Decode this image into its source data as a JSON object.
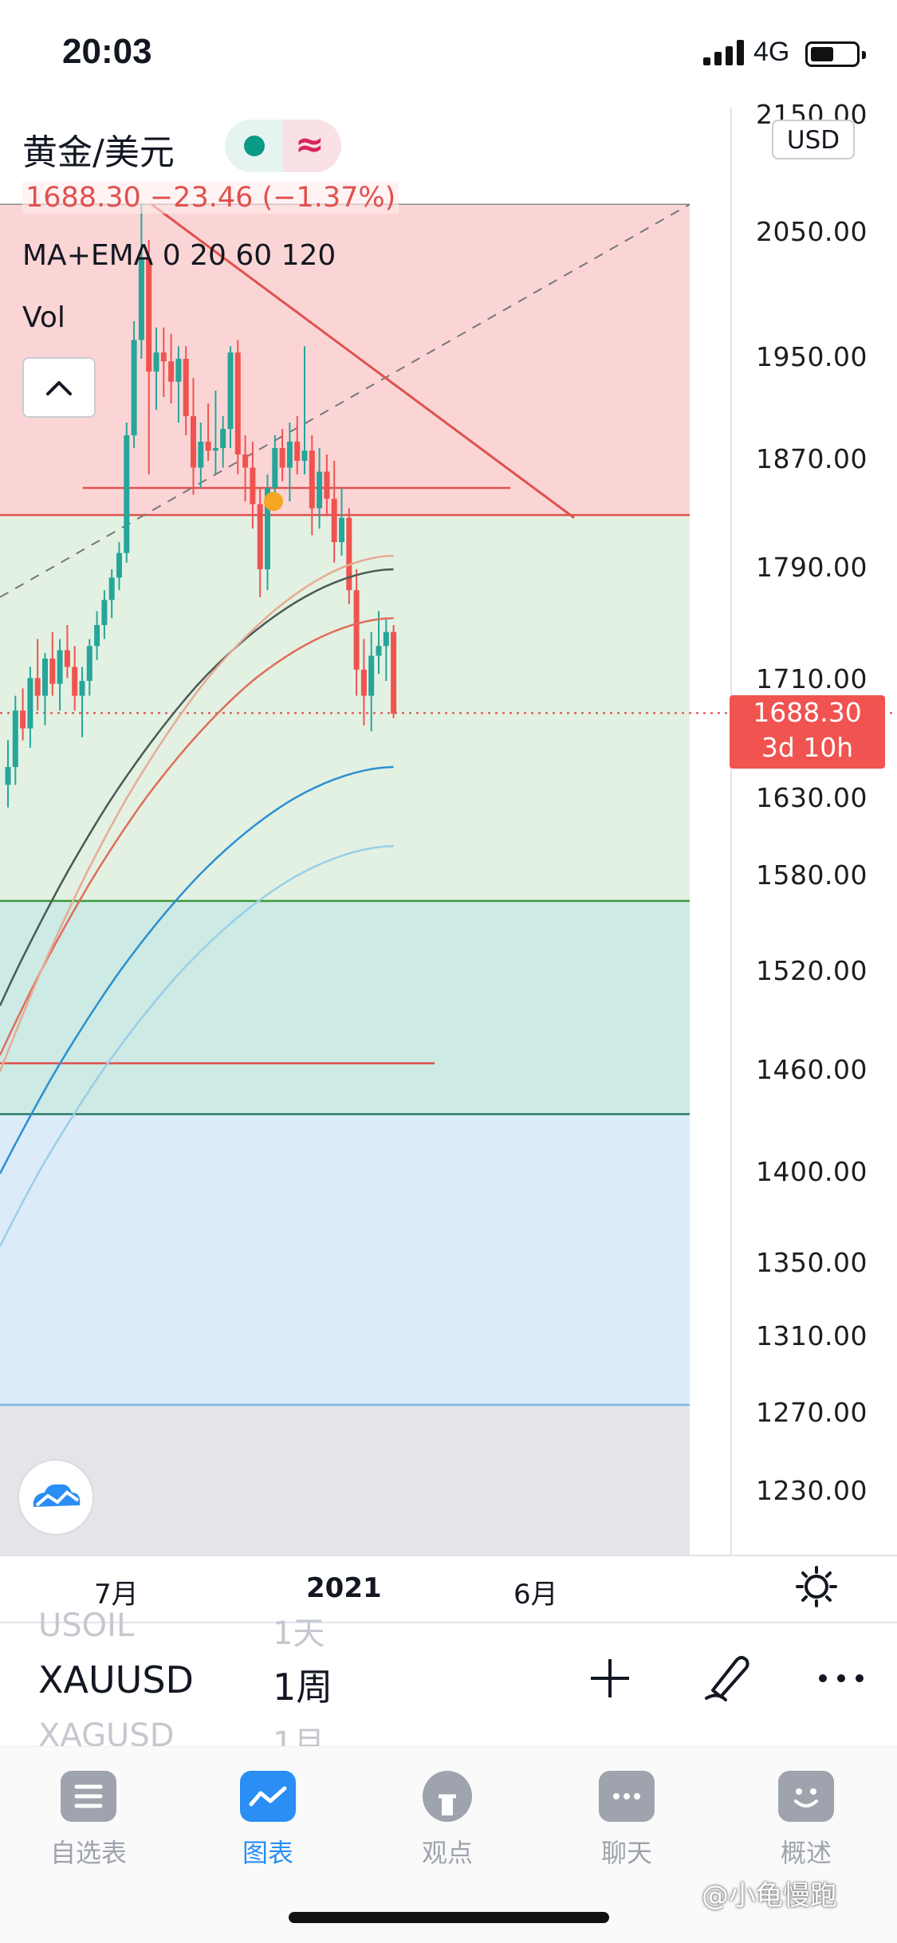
{
  "status_bar": {
    "time": "20:03",
    "network": "4G"
  },
  "symbol": {
    "title": "黄金/美元",
    "quote": "1688.30 −23.46 (−1.37%)",
    "indicator": "MA+EMA 0 20 60 120",
    "volume_label": "Vol",
    "currency": "USD"
  },
  "price_axis": {
    "labels": [
      "2150.00",
      "2050.00",
      "1950.00",
      "1870.00",
      "1790.00",
      "1710.00",
      "1630.00",
      "1580.00",
      "1520.00",
      "1460.00",
      "1400.00",
      "1350.00",
      "1310.00",
      "1270.00",
      "1230.00"
    ]
  },
  "price_tag": {
    "price": "1688.30",
    "countdown": "3d 10h"
  },
  "time_axis": {
    "labels": [
      "7月",
      "2021",
      "6月"
    ]
  },
  "picker": {
    "symbol_above": "USOIL",
    "interval_above": "1天",
    "symbol": "XAUUSD",
    "interval": "1周",
    "symbol_below": "XAGUSD",
    "interval_below": "1月"
  },
  "tabs": [
    {
      "label": "自选表",
      "icon": "watchlist-icon"
    },
    {
      "label": "图表",
      "icon": "chart-icon"
    },
    {
      "label": "观点",
      "icon": "ideas-icon"
    },
    {
      "label": "聊天",
      "icon": "chat-icon"
    },
    {
      "label": "概述",
      "icon": "overview-icon"
    }
  ],
  "watermark": "@小龟慢跑",
  "colors": {
    "up": "#26a69a",
    "down": "#ef5350",
    "accent": "#2a8ef4",
    "price_tag": "#f05350"
  },
  "chart_data": {
    "type": "candlestick",
    "symbol": "XAUUSD",
    "interval": "1周",
    "last_price": 1688.3,
    "change": -23.46,
    "change_pct": -1.37,
    "ylim": [
      1200,
      2160
    ],
    "y_ticks": [
      2150,
      2050,
      1950,
      1870,
      1790,
      1710,
      1630,
      1580,
      1520,
      1460,
      1400,
      1350,
      1310,
      1270,
      1230
    ],
    "zones": [
      {
        "from": 1830,
        "to": 2075,
        "color": "#fbd5d5"
      },
      {
        "from": 1565,
        "to": 1830,
        "color": "#e3f1e3"
      },
      {
        "from": 1435,
        "to": 1565,
        "color": "#cdeae4"
      },
      {
        "from": 1275,
        "to": 1435,
        "color": "#dcebf8"
      }
    ],
    "candles": [
      {
        "o": 1640,
        "h": 1670,
        "l": 1625,
        "c": 1652
      },
      {
        "o": 1652,
        "h": 1700,
        "l": 1640,
        "c": 1690
      },
      {
        "o": 1690,
        "h": 1705,
        "l": 1670,
        "c": 1678
      },
      {
        "o": 1678,
        "h": 1720,
        "l": 1665,
        "c": 1712
      },
      {
        "o": 1712,
        "h": 1740,
        "l": 1690,
        "c": 1700
      },
      {
        "o": 1700,
        "h": 1730,
        "l": 1680,
        "c": 1726
      },
      {
        "o": 1726,
        "h": 1745,
        "l": 1700,
        "c": 1708
      },
      {
        "o": 1708,
        "h": 1740,
        "l": 1690,
        "c": 1732
      },
      {
        "o": 1732,
        "h": 1750,
        "l": 1712,
        "c": 1720
      },
      {
        "o": 1720,
        "h": 1735,
        "l": 1690,
        "c": 1700
      },
      {
        "o": 1700,
        "h": 1720,
        "l": 1672,
        "c": 1710
      },
      {
        "o": 1710,
        "h": 1740,
        "l": 1700,
        "c": 1735
      },
      {
        "o": 1735,
        "h": 1760,
        "l": 1725,
        "c": 1750
      },
      {
        "o": 1750,
        "h": 1775,
        "l": 1740,
        "c": 1768
      },
      {
        "o": 1768,
        "h": 1790,
        "l": 1755,
        "c": 1784
      },
      {
        "o": 1784,
        "h": 1810,
        "l": 1775,
        "c": 1802
      },
      {
        "o": 1802,
        "h": 1900,
        "l": 1795,
        "c": 1890
      },
      {
        "o": 1890,
        "h": 1980,
        "l": 1880,
        "c": 1965
      },
      {
        "o": 1965,
        "h": 2075,
        "l": 1950,
        "c": 2030
      },
      {
        "o": 2030,
        "h": 2045,
        "l": 1860,
        "c": 1940
      },
      {
        "o": 1940,
        "h": 1975,
        "l": 1910,
        "c": 1955
      },
      {
        "o": 1955,
        "h": 1975,
        "l": 1920,
        "c": 1948
      },
      {
        "o": 1948,
        "h": 1970,
        "l": 1915,
        "c": 1932
      },
      {
        "o": 1932,
        "h": 1960,
        "l": 1900,
        "c": 1950
      },
      {
        "o": 1950,
        "h": 1960,
        "l": 1890,
        "c": 1905
      },
      {
        "o": 1905,
        "h": 1935,
        "l": 1845,
        "c": 1865
      },
      {
        "o": 1865,
        "h": 1900,
        "l": 1850,
        "c": 1885
      },
      {
        "o": 1885,
        "h": 1915,
        "l": 1870,
        "c": 1878
      },
      {
        "o": 1878,
        "h": 1925,
        "l": 1860,
        "c": 1880
      },
      {
        "o": 1880,
        "h": 1905,
        "l": 1865,
        "c": 1895
      },
      {
        "o": 1895,
        "h": 1960,
        "l": 1880,
        "c": 1955
      },
      {
        "o": 1955,
        "h": 1965,
        "l": 1860,
        "c": 1875
      },
      {
        "o": 1875,
        "h": 1890,
        "l": 1840,
        "c": 1865
      },
      {
        "o": 1865,
        "h": 1885,
        "l": 1820,
        "c": 1838
      },
      {
        "o": 1838,
        "h": 1850,
        "l": 1770,
        "c": 1790
      },
      {
        "o": 1790,
        "h": 1860,
        "l": 1775,
        "c": 1850
      },
      {
        "o": 1850,
        "h": 1890,
        "l": 1840,
        "c": 1880
      },
      {
        "o": 1880,
        "h": 1895,
        "l": 1855,
        "c": 1865
      },
      {
        "o": 1865,
        "h": 1900,
        "l": 1840,
        "c": 1885
      },
      {
        "o": 1885,
        "h": 1905,
        "l": 1860,
        "c": 1870
      },
      {
        "o": 1870,
        "h": 1960,
        "l": 1860,
        "c": 1878
      },
      {
        "o": 1878,
        "h": 1890,
        "l": 1815,
        "c": 1835
      },
      {
        "o": 1835,
        "h": 1880,
        "l": 1820,
        "c": 1862
      },
      {
        "o": 1862,
        "h": 1875,
        "l": 1830,
        "c": 1842
      },
      {
        "o": 1842,
        "h": 1870,
        "l": 1795,
        "c": 1810
      },
      {
        "o": 1810,
        "h": 1850,
        "l": 1800,
        "c": 1828
      },
      {
        "o": 1828,
        "h": 1835,
        "l": 1765,
        "c": 1775
      },
      {
        "o": 1775,
        "h": 1790,
        "l": 1700,
        "c": 1718
      },
      {
        "o": 1718,
        "h": 1740,
        "l": 1680,
        "c": 1700
      },
      {
        "o": 1700,
        "h": 1745,
        "l": 1676,
        "c": 1728
      },
      {
        "o": 1728,
        "h": 1760,
        "l": 1715,
        "c": 1735
      },
      {
        "o": 1735,
        "h": 1755,
        "l": 1710,
        "c": 1745
      },
      {
        "o": 1745,
        "h": 1750,
        "l": 1685,
        "c": 1688
      }
    ],
    "moving_averages": [
      {
        "color": "#4c5a55",
        "start": 1500,
        "end": 1790
      },
      {
        "color": "#e06d5a",
        "start": 1470,
        "end": 1755
      },
      {
        "color": "#e6ab93",
        "start": 1460,
        "end": 1800
      },
      {
        "color": "#2b8fd3",
        "start": 1400,
        "end": 1652
      },
      {
        "color": "#98cfe8",
        "start": 1360,
        "end": 1600
      }
    ],
    "horizontal_lines": [
      {
        "price": 1850,
        "color": "#e0504e",
        "from_frac": 0.12,
        "to_frac": 0.74
      },
      {
        "price": 1830,
        "color": "#e0504e",
        "from_frac": 0,
        "to_frac": 1
      },
      {
        "price": 1565,
        "color": "#3a9a3a",
        "from_frac": 0,
        "to_frac": 1
      },
      {
        "price": 1435,
        "color": "#2a7d6a",
        "from_frac": 0,
        "to_frac": 1
      },
      {
        "price": 1465,
        "color": "#e0504e",
        "from_frac": 0,
        "to_frac": 0.63
      },
      {
        "price": 1275,
        "color": "#7ab8e6",
        "from_frac": 0,
        "to_frac": 1
      }
    ],
    "x_ticks": [
      "7月",
      "2021",
      "6月"
    ]
  }
}
